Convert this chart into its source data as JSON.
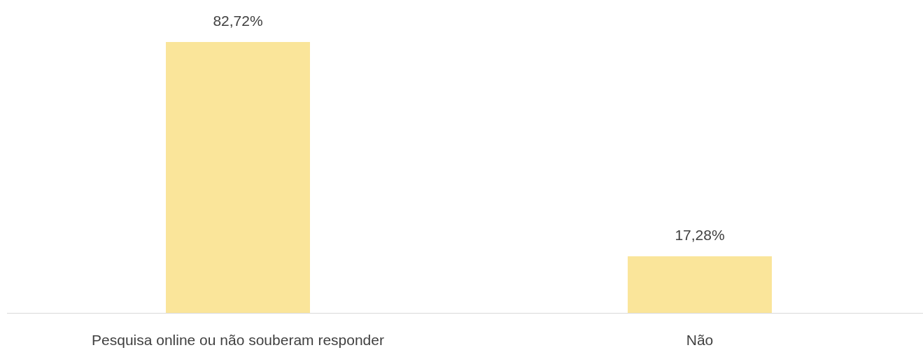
{
  "chart_data": {
    "type": "bar",
    "categories": [
      "Pesquisa online ou não souberam responder",
      "Não"
    ],
    "values": [
      82.72,
      17.28
    ],
    "value_labels": [
      "82,72%",
      "17,28%"
    ],
    "color": "#fae59a"
  }
}
